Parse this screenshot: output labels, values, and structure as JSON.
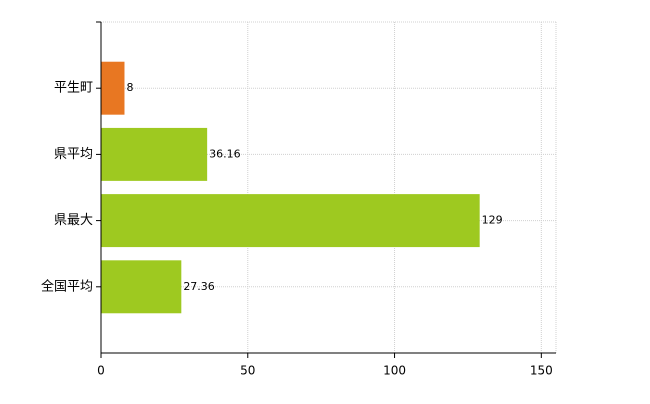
{
  "chart_data": {
    "type": "barh",
    "categories": [
      "平生町",
      "県平均",
      "県最大",
      "全国平均"
    ],
    "values": [
      8,
      36.16,
      129,
      27.36
    ],
    "colors": [
      "#e87722",
      "#9ec920",
      "#9ec920",
      "#9ec920"
    ],
    "xlim": [
      0,
      155
    ],
    "xticks": [
      0,
      50,
      100,
      150
    ],
    "grid": true
  }
}
